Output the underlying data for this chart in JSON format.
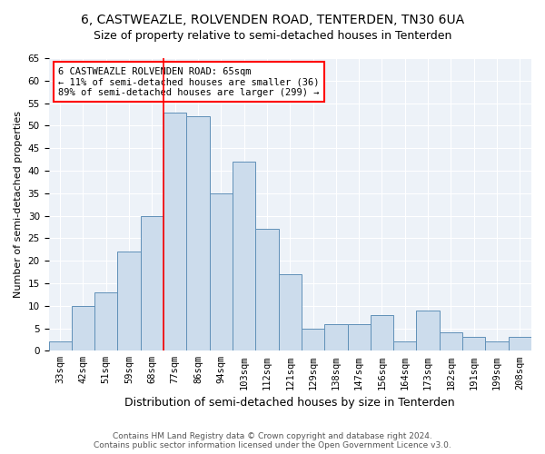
{
  "title": "6, CASTWEAZLE, ROLVENDEN ROAD, TENTERDEN, TN30 6UA",
  "subtitle": "Size of property relative to semi-detached houses in Tenterden",
  "xlabel": "Distribution of semi-detached houses by size in Tenterden",
  "ylabel": "Number of semi-detached properties",
  "categories": [
    "33sqm",
    "42sqm",
    "51sqm",
    "59sqm",
    "68sqm",
    "77sqm",
    "86sqm",
    "94sqm",
    "103sqm",
    "112sqm",
    "121sqm",
    "129sqm",
    "138sqm",
    "147sqm",
    "156sqm",
    "164sqm",
    "173sqm",
    "182sqm",
    "191sqm",
    "199sqm",
    "208sqm"
  ],
  "values": [
    2,
    10,
    13,
    22,
    30,
    53,
    52,
    35,
    42,
    27,
    17,
    5,
    6,
    6,
    8,
    2,
    9,
    4,
    3,
    2,
    3
  ],
  "bar_color": "#ccdcec",
  "bar_edge_color": "#6090b8",
  "annotation_text": "6 CASTWEAZLE ROLVENDEN ROAD: 65sqm\n← 11% of semi-detached houses are smaller (36)\n89% of semi-detached houses are larger (299) →",
  "vline_color": "red",
  "vline_pos": 4.5,
  "footer": "Contains HM Land Registry data © Crown copyright and database right 2024.\nContains public sector information licensed under the Open Government Licence v3.0.",
  "ylim": [
    0,
    65
  ],
  "yticks": [
    0,
    5,
    10,
    15,
    20,
    25,
    30,
    35,
    40,
    45,
    50,
    55,
    60,
    65
  ],
  "title_fontsize": 10,
  "subtitle_fontsize": 9,
  "tick_fontsize": 7.5,
  "ylabel_fontsize": 8,
  "xlabel_fontsize": 9,
  "footer_fontsize": 6.5,
  "annotation_fontsize": 7.5,
  "background_color": "#edf2f8"
}
